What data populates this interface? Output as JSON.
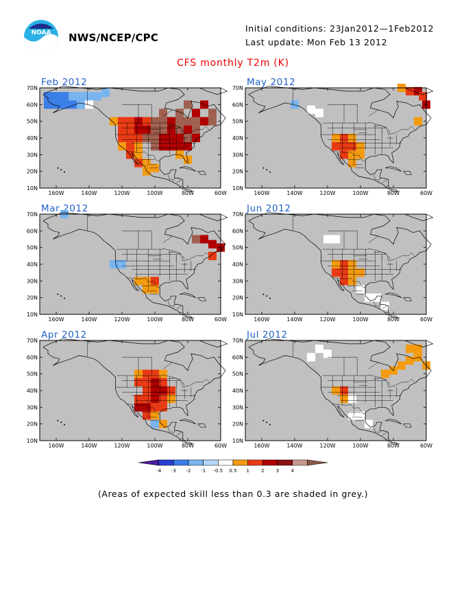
{
  "header": {
    "org": "NWS/NCEP/CPC",
    "initial_conditions": "Initial conditions: 23Jan2012—1Feb2012",
    "last_update": "Last update: Mon Feb 13 2012",
    "logo_text": "NOAA"
  },
  "title": "CFS monthly T2m (K)",
  "lat_labels": [
    "70N",
    "60N",
    "50N",
    "40N",
    "30N",
    "20N",
    "10N"
  ],
  "lon_labels": [
    "160W",
    "140W",
    "120W",
    "100W",
    "80W",
    "60W"
  ],
  "colors": {
    "ocean_grey": "#c0c0c0",
    "land_grey": "#c0c0c0",
    "title_red": "#e00000",
    "panel_title_blue": "#1e5fc8"
  },
  "panels": [
    {
      "title": "Feb 2012",
      "anomaly": [
        {
          "lon": -165,
          "lat": 65,
          "c": "b2"
        },
        {
          "lon": -160,
          "lat": 65,
          "c": "b2"
        },
        {
          "lon": -155,
          "lat": 65,
          "c": "b2"
        },
        {
          "lon": -150,
          "lat": 65,
          "c": "b1"
        },
        {
          "lon": -145,
          "lat": 65,
          "c": "b1"
        },
        {
          "lon": -140,
          "lat": 65,
          "c": "b1"
        },
        {
          "lon": -135,
          "lat": 65,
          "c": "b1"
        },
        {
          "lon": -130,
          "lat": 67,
          "c": "b1"
        },
        {
          "lon": -165,
          "lat": 60,
          "c": "b2"
        },
        {
          "lon": -160,
          "lat": 60,
          "c": "b2"
        },
        {
          "lon": -155,
          "lat": 60,
          "c": "b2"
        },
        {
          "lon": -150,
          "lat": 60,
          "c": "b2"
        },
        {
          "lon": -145,
          "lat": 60,
          "c": "b1"
        },
        {
          "lon": -140,
          "lat": 60,
          "c": "b0"
        },
        {
          "lon": -125,
          "lat": 50,
          "c": "r1"
        },
        {
          "lon": -120,
          "lat": 50,
          "c": "r2"
        },
        {
          "lon": -115,
          "lat": 50,
          "c": "r2"
        },
        {
          "lon": -110,
          "lat": 50,
          "c": "r3"
        },
        {
          "lon": -105,
          "lat": 50,
          "c": "r2"
        },
        {
          "lon": -100,
          "lat": 50,
          "c": "r4"
        },
        {
          "lon": -95,
          "lat": 50,
          "c": "r4"
        },
        {
          "lon": -90,
          "lat": 50,
          "c": "r3"
        },
        {
          "lon": -85,
          "lat": 50,
          "c": "r4"
        },
        {
          "lon": -80,
          "lat": 50,
          "c": "r4"
        },
        {
          "lon": -75,
          "lat": 50,
          "c": "r4"
        },
        {
          "lon": -70,
          "lat": 50,
          "c": "r3"
        },
        {
          "lon": -65,
          "lat": 50,
          "c": "r4"
        },
        {
          "lon": -95,
          "lat": 55,
          "c": "r4"
        },
        {
          "lon": -85,
          "lat": 55,
          "c": "r4"
        },
        {
          "lon": -75,
          "lat": 55,
          "c": "r3"
        },
        {
          "lon": -70,
          "lat": 60,
          "c": "r3"
        },
        {
          "lon": -65,
          "lat": 55,
          "c": "r4"
        },
        {
          "lon": -80,
          "lat": 60,
          "c": "r4"
        },
        {
          "lon": -120,
          "lat": 45,
          "c": "r2"
        },
        {
          "lon": -115,
          "lat": 45,
          "c": "r2"
        },
        {
          "lon": -110,
          "lat": 45,
          "c": "r3"
        },
        {
          "lon": -105,
          "lat": 45,
          "c": "r3"
        },
        {
          "lon": -100,
          "lat": 45,
          "c": "r4"
        },
        {
          "lon": -95,
          "lat": 45,
          "c": "r4"
        },
        {
          "lon": -90,
          "lat": 45,
          "c": "r3"
        },
        {
          "lon": -85,
          "lat": 45,
          "c": "r4"
        },
        {
          "lon": -80,
          "lat": 45,
          "c": "r3"
        },
        {
          "lon": -75,
          "lat": 45,
          "c": "r4"
        },
        {
          "lon": -120,
          "lat": 40,
          "c": "r2"
        },
        {
          "lon": -115,
          "lat": 40,
          "c": "r2"
        },
        {
          "lon": -110,
          "lat": 40,
          "c": "r2"
        },
        {
          "lon": -105,
          "lat": 40,
          "c": "r4"
        },
        {
          "lon": -100,
          "lat": 40,
          "c": "r4"
        },
        {
          "lon": -95,
          "lat": 40,
          "c": "r3"
        },
        {
          "lon": -90,
          "lat": 40,
          "c": "r3"
        },
        {
          "lon": -85,
          "lat": 40,
          "c": "r3"
        },
        {
          "lon": -80,
          "lat": 40,
          "c": "r4"
        },
        {
          "lon": -75,
          "lat": 40,
          "c": "r3"
        },
        {
          "lon": -120,
          "lat": 35,
          "c": "r1"
        },
        {
          "lon": -115,
          "lat": 35,
          "c": "r2"
        },
        {
          "lon": -110,
          "lat": 35,
          "c": "r1"
        },
        {
          "lon": -100,
          "lat": 35,
          "c": "r4"
        },
        {
          "lon": -95,
          "lat": 35,
          "c": "r3"
        },
        {
          "lon": -90,
          "lat": 35,
          "c": "r3"
        },
        {
          "lon": -85,
          "lat": 35,
          "c": "r3"
        },
        {
          "lon": -80,
          "lat": 35,
          "c": "r3"
        },
        {
          "lon": -115,
          "lat": 30,
          "c": "r2"
        },
        {
          "lon": -110,
          "lat": 30,
          "c": "r1"
        },
        {
          "lon": -85,
          "lat": 30,
          "c": "r1"
        },
        {
          "lon": -80,
          "lat": 27,
          "c": "r1"
        },
        {
          "lon": -110,
          "lat": 25,
          "c": "r2"
        },
        {
          "lon": -105,
          "lat": 25,
          "c": "r1"
        },
        {
          "lon": -100,
          "lat": 22,
          "c": "r1"
        },
        {
          "lon": -105,
          "lat": 20,
          "c": "r1"
        }
      ]
    },
    {
      "title": "May 2012",
      "anomaly": [
        {
          "lon": -140,
          "lat": 60,
          "c": "b1"
        },
        {
          "lon": -130,
          "lat": 57,
          "c": "b0"
        },
        {
          "lon": -125,
          "lat": 55,
          "c": "b0"
        },
        {
          "lon": -115,
          "lat": 40,
          "c": "r1"
        },
        {
          "lon": -110,
          "lat": 40,
          "c": "r2"
        },
        {
          "lon": -105,
          "lat": 40,
          "c": "r1"
        },
        {
          "lon": -115,
          "lat": 35,
          "c": "r2"
        },
        {
          "lon": -110,
          "lat": 35,
          "c": "r2"
        },
        {
          "lon": -105,
          "lat": 35,
          "c": "r2"
        },
        {
          "lon": -100,
          "lat": 35,
          "c": "r1"
        },
        {
          "lon": -110,
          "lat": 30,
          "c": "r2"
        },
        {
          "lon": -105,
          "lat": 30,
          "c": "r1"
        },
        {
          "lon": -100,
          "lat": 30,
          "c": "r1"
        },
        {
          "lon": -105,
          "lat": 25,
          "c": "r1"
        },
        {
          "lon": -75,
          "lat": 70,
          "c": "r1"
        },
        {
          "lon": -70,
          "lat": 68,
          "c": "r2"
        },
        {
          "lon": -65,
          "lat": 68,
          "c": "r3"
        },
        {
          "lon": -62,
          "lat": 65,
          "c": "r2"
        },
        {
          "lon": -60,
          "lat": 60,
          "c": "r3"
        },
        {
          "lon": -65,
          "lat": 50,
          "c": "r1"
        }
      ]
    },
    {
      "title": "Mar 2012",
      "anomaly": [
        {
          "lon": -155,
          "lat": 70,
          "c": "b1"
        },
        {
          "lon": -125,
          "lat": 40,
          "c": "b1"
        },
        {
          "lon": -120,
          "lat": 40,
          "c": "b1"
        },
        {
          "lon": -110,
          "lat": 30,
          "c": "r1"
        },
        {
          "lon": -105,
          "lat": 30,
          "c": "r1"
        },
        {
          "lon": -100,
          "lat": 30,
          "c": "r2"
        },
        {
          "lon": -105,
          "lat": 25,
          "c": "r1"
        },
        {
          "lon": -100,
          "lat": 25,
          "c": "r1"
        },
        {
          "lon": -75,
          "lat": 55,
          "c": "r4"
        },
        {
          "lon": -70,
          "lat": 55,
          "c": "r3"
        },
        {
          "lon": -65,
          "lat": 52,
          "c": "r3"
        },
        {
          "lon": -60,
          "lat": 50,
          "c": "r3"
        },
        {
          "lon": -65,
          "lat": 45,
          "c": "r2"
        }
      ]
    },
    {
      "title": "Jun 2012",
      "anomaly": [
        {
          "lon": -120,
          "lat": 55,
          "c": "b0"
        },
        {
          "lon": -115,
          "lat": 55,
          "c": "b0"
        },
        {
          "lon": -115,
          "lat": 40,
          "c": "r1"
        },
        {
          "lon": -110,
          "lat": 40,
          "c": "r2"
        },
        {
          "lon": -105,
          "lat": 40,
          "c": "r1"
        },
        {
          "lon": -115,
          "lat": 35,
          "c": "r2"
        },
        {
          "lon": -110,
          "lat": 35,
          "c": "r2"
        },
        {
          "lon": -105,
          "lat": 35,
          "c": "r1"
        },
        {
          "lon": -100,
          "lat": 35,
          "c": "r1"
        },
        {
          "lon": -110,
          "lat": 30,
          "c": "r2"
        },
        {
          "lon": -105,
          "lat": 30,
          "c": "r1"
        },
        {
          "lon": -100,
          "lat": 25,
          "c": "b0"
        },
        {
          "lon": -95,
          "lat": 20,
          "c": "b0"
        },
        {
          "lon": -90,
          "lat": 20,
          "c": "b0"
        },
        {
          "lon": -85,
          "lat": 15,
          "c": "b0"
        }
      ]
    },
    {
      "title": "Apr 2012",
      "anomaly": [
        {
          "lon": -110,
          "lat": 50,
          "c": "r1"
        },
        {
          "lon": -105,
          "lat": 50,
          "c": "r2"
        },
        {
          "lon": -100,
          "lat": 50,
          "c": "r2"
        },
        {
          "lon": -95,
          "lat": 50,
          "c": "r1"
        },
        {
          "lon": -110,
          "lat": 45,
          "c": "r2"
        },
        {
          "lon": -105,
          "lat": 45,
          "c": "r2"
        },
        {
          "lon": -100,
          "lat": 45,
          "c": "r3"
        },
        {
          "lon": -95,
          "lat": 45,
          "c": "r2"
        },
        {
          "lon": -105,
          "lat": 40,
          "c": "r2"
        },
        {
          "lon": -100,
          "lat": 40,
          "c": "r3"
        },
        {
          "lon": -95,
          "lat": 40,
          "c": "r3"
        },
        {
          "lon": -90,
          "lat": 40,
          "c": "r2"
        },
        {
          "lon": -110,
          "lat": 35,
          "c": "r2"
        },
        {
          "lon": -105,
          "lat": 35,
          "c": "r2"
        },
        {
          "lon": -100,
          "lat": 35,
          "c": "r3"
        },
        {
          "lon": -95,
          "lat": 35,
          "c": "r2"
        },
        {
          "lon": -90,
          "lat": 35,
          "c": "r1"
        },
        {
          "lon": -110,
          "lat": 30,
          "c": "r3"
        },
        {
          "lon": -105,
          "lat": 30,
          "c": "r3"
        },
        {
          "lon": -100,
          "lat": 30,
          "c": "r2"
        },
        {
          "lon": -95,
          "lat": 30,
          "c": "r2"
        },
        {
          "lon": -105,
          "lat": 25,
          "c": "r2"
        },
        {
          "lon": -100,
          "lat": 25,
          "c": "r1"
        },
        {
          "lon": -95,
          "lat": 20,
          "c": "r1"
        },
        {
          "lon": -100,
          "lat": 20,
          "c": "b1"
        }
      ]
    },
    {
      "title": "Jul 2012",
      "anomaly": [
        {
          "lon": -125,
          "lat": 65,
          "c": "b0"
        },
        {
          "lon": -120,
          "lat": 62,
          "c": "b0"
        },
        {
          "lon": -130,
          "lat": 60,
          "c": "b0"
        },
        {
          "lon": -115,
          "lat": 40,
          "c": "r1"
        },
        {
          "lon": -110,
          "lat": 40,
          "c": "r2"
        },
        {
          "lon": -110,
          "lat": 35,
          "c": "r1"
        },
        {
          "lon": -105,
          "lat": 35,
          "c": "b0"
        },
        {
          "lon": -105,
          "lat": 25,
          "c": "b0"
        },
        {
          "lon": -100,
          "lat": 25,
          "c": "b0"
        },
        {
          "lon": -95,
          "lat": 20,
          "c": "b0"
        },
        {
          "lon": -70,
          "lat": 65,
          "c": "r1"
        },
        {
          "lon": -65,
          "lat": 65,
          "c": "r1"
        },
        {
          "lon": -65,
          "lat": 60,
          "c": "r1"
        },
        {
          "lon": -70,
          "lat": 58,
          "c": "r1"
        },
        {
          "lon": -60,
          "lat": 55,
          "c": "r1"
        },
        {
          "lon": -75,
          "lat": 55,
          "c": "r1"
        },
        {
          "lon": -80,
          "lat": 52,
          "c": "r1"
        },
        {
          "lon": -85,
          "lat": 50,
          "c": "r1"
        }
      ]
    }
  ],
  "colorbar": {
    "labels": [
      "-4",
      "-3",
      "-2",
      "-1",
      "-0.5",
      "0.5",
      "1",
      "2",
      "3",
      "4"
    ],
    "colors": [
      "#4a1aa0",
      "#2a3ed0",
      "#3c7ee8",
      "#78b4f0",
      "#b4d6f8",
      "#ffffff",
      "#f59b10",
      "#e83a14",
      "#b00000",
      "#8c1010",
      "#c89890",
      "#8c5848"
    ]
  },
  "note": "(Areas of expected skill less than 0.3 are shaded in grey.)"
}
